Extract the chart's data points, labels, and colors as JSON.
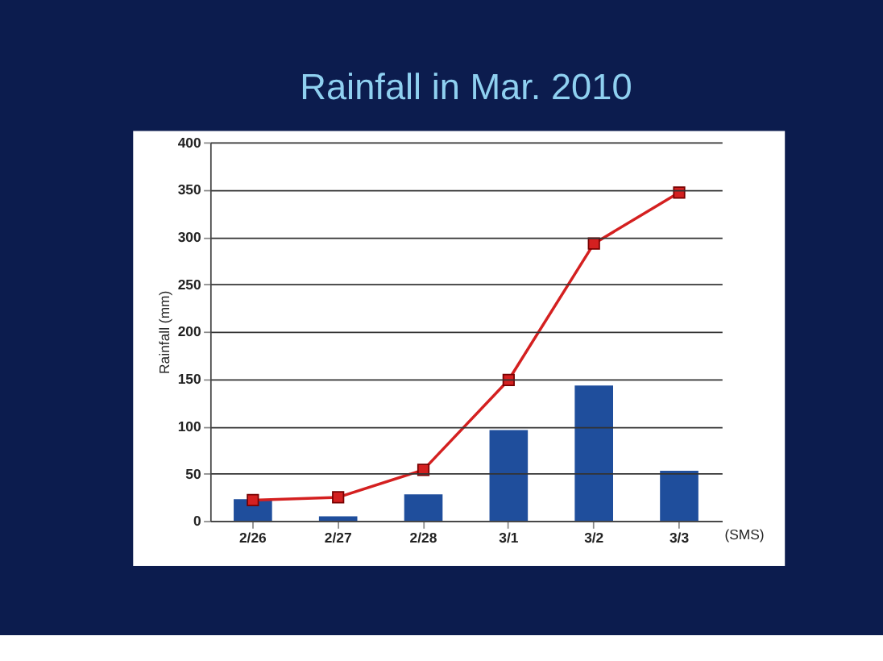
{
  "chart_data": {
    "type": "bar",
    "title": "Rainfall in Mar. 2010",
    "ylabel": "Rainfall (mm)",
    "categories": [
      "2/26",
      "2/27",
      "2/28",
      "3/1",
      "3/2",
      "3/3"
    ],
    "series": [
      {
        "color": "#1f4e9c",
        "values": [
          23,
          5,
          28,
          96,
          143,
          53
        ]
      },
      {
        "type": "line",
        "color": "#d42020",
        "values": [
          22,
          25,
          54,
          149,
          293,
          347
        ],
        "marker": "square"
      }
    ],
    "ylim": [
      0,
      400
    ],
    "yticks": [
      0,
      50,
      100,
      150,
      200,
      250,
      300,
      350,
      400
    ],
    "grid": "y",
    "annotations": [
      "(SMS)"
    ]
  }
}
